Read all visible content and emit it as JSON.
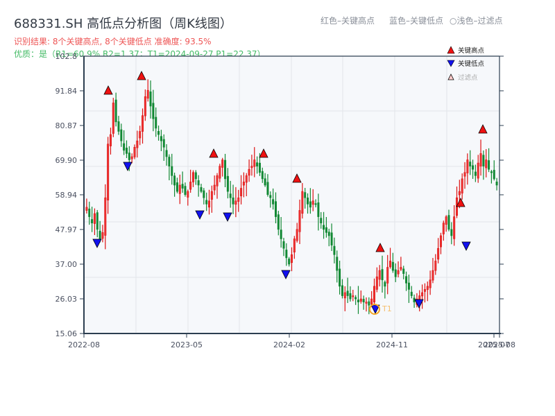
{
  "header": {
    "title": "688331.SH 高低点分析图（周K线图）",
    "result_line": "识别结果: 8个关键高点, 8个关键低点  准确度: 93.5%",
    "quality_line": "优质：是（R1=60.9%  R2=1.37；T1=2024-09-27 P1=22.37）"
  },
  "top_legend": {
    "red": "红色–关键高点",
    "blue": "蓝色–关键低点",
    "light": "○浅色–过滤点"
  },
  "legend": {
    "items": [
      {
        "label": "关键高点",
        "marker": "triangle-up",
        "color": "#ee1111"
      },
      {
        "label": "关键低点",
        "marker": "triangle-down",
        "color": "#1111ee"
      },
      {
        "label": "过滤点",
        "marker": "triangle-up-outline",
        "color": "#ffcccc"
      }
    ]
  },
  "annotation": {
    "label": "T1",
    "color": "#f5a623"
  },
  "colors": {
    "up": "#dd1111",
    "down": "#118833",
    "grid": "#e2e5ea",
    "plot_bg": "#f6f8fb",
    "axis": "#2c3e50"
  },
  "chart_data": {
    "type": "candlestick",
    "title": "688331.SH 高低点分析图（周K线图）",
    "xlabel": "",
    "ylabel": "",
    "ylim": [
      15.06,
      102.8
    ],
    "y_ticks": [
      15.06,
      26.03,
      37.0,
      47.97,
      58.94,
      69.9,
      80.87,
      91.84,
      102.8
    ],
    "y_tick_labels": [
      "15.06",
      "26.03",
      "37.00",
      "47.97",
      "58.94",
      "69.90",
      "80.87",
      "91.84",
      "102.8"
    ],
    "x_ticks": [
      "2022-08",
      "2023-05",
      "2024-02",
      "2024-11",
      "2025-07",
      "2025-08"
    ],
    "grid": true,
    "legend_position": "top-right",
    "key_highs": [
      {
        "date": "2022-10",
        "price": 91.8
      },
      {
        "date": "2022-12",
        "price": 95.2
      },
      {
        "date": "2023-07",
        "price": 72.0
      },
      {
        "date": "2023-11",
        "price": 72.2
      },
      {
        "date": "2024-03",
        "price": 64.5
      },
      {
        "date": "2024-09",
        "price": 42.0
      },
      {
        "date": "2025-03",
        "price": 56.3
      },
      {
        "date": "2025-05",
        "price": 80.2
      }
    ],
    "key_lows": [
      {
        "date": "2022-09",
        "price": 43.3
      },
      {
        "date": "2022-11",
        "price": 67.8
      },
      {
        "date": "2023-06",
        "price": 52.5
      },
      {
        "date": "2023-08",
        "price": 51.8
      },
      {
        "date": "2024-02",
        "price": 33.2
      },
      {
        "date": "2024-09",
        "price": 22.4
      },
      {
        "date": "2024-12",
        "price": 24.5
      },
      {
        "date": "2025-04",
        "price": 42.2
      }
    ],
    "annotations": [
      {
        "label": "T1",
        "date": "2024-09-27",
        "price": 22.37
      }
    ],
    "closes_approx": [
      55,
      52,
      50,
      53,
      48,
      45,
      47,
      58,
      75,
      78,
      88,
      82,
      79,
      76,
      73,
      72,
      70,
      71,
      74,
      76,
      79,
      84,
      90,
      92,
      87,
      83,
      80,
      78,
      76,
      74,
      71,
      68,
      65,
      62,
      60,
      62,
      61,
      59,
      60,
      63,
      66,
      64,
      62,
      60,
      58,
      56,
      57,
      60,
      62,
      65,
      68,
      70,
      64,
      60,
      58,
      56,
      57,
      58,
      61,
      63,
      65,
      67,
      68,
      70,
      68,
      66,
      64,
      62,
      59,
      58,
      56,
      52,
      48,
      45,
      42,
      39,
      37,
      40,
      45,
      48,
      54,
      60,
      58,
      56,
      55,
      57,
      56,
      52,
      50,
      48,
      47,
      46,
      43,
      40,
      35,
      30,
      27,
      28,
      27,
      26,
      27,
      26,
      25,
      26,
      25,
      25,
      24,
      26,
      30,
      33,
      35,
      32,
      30,
      36,
      38,
      35,
      33,
      35,
      36,
      34,
      31,
      29,
      27,
      25,
      26,
      27,
      28,
      29,
      30,
      32,
      35,
      38,
      42,
      46,
      50,
      52,
      48,
      46,
      52,
      58,
      60,
      64,
      66,
      70,
      68,
      67,
      65,
      69,
      72,
      68,
      70,
      67,
      66,
      64,
      62
    ]
  }
}
